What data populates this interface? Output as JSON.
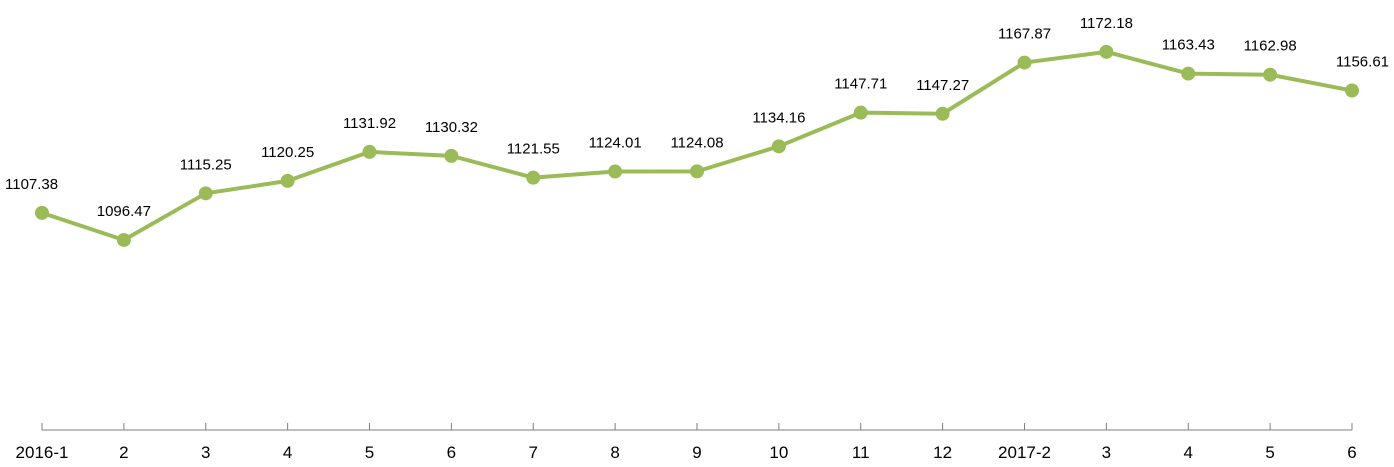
{
  "chart_data": {
    "type": "line",
    "title": "",
    "xlabel": "",
    "ylabel": "",
    "categories": [
      "2016-1",
      "2",
      "3",
      "4",
      "5",
      "6",
      "7",
      "8",
      "9",
      "10",
      "11",
      "12",
      "2017-2",
      "3",
      "4",
      "5",
      "6"
    ],
    "series": [
      {
        "values": [
          1107.38,
          1096.47,
          1115.25,
          1120.25,
          1131.92,
          1130.32,
          1121.55,
          1124.01,
          1124.08,
          1134.16,
          1147.71,
          1147.27,
          1167.87,
          1172.18,
          1163.43,
          1162.98,
          1156.61
        ],
        "labels": [
          "1107.38",
          "1096.47",
          "1115.25",
          "1120.25",
          "1131.92",
          "1130.32",
          "1121.55",
          "1124.01",
          "1124.08",
          "1134.16",
          "1147.71",
          "1147.27",
          "1167.87",
          "1172.18",
          "1163.43",
          "1162.98",
          "1156.61"
        ],
        "color": "#9bbb59"
      }
    ],
    "ylim": [
      1020,
      1185
    ],
    "grid": false,
    "legend": "none",
    "axis_color": "#7f7f7f"
  }
}
